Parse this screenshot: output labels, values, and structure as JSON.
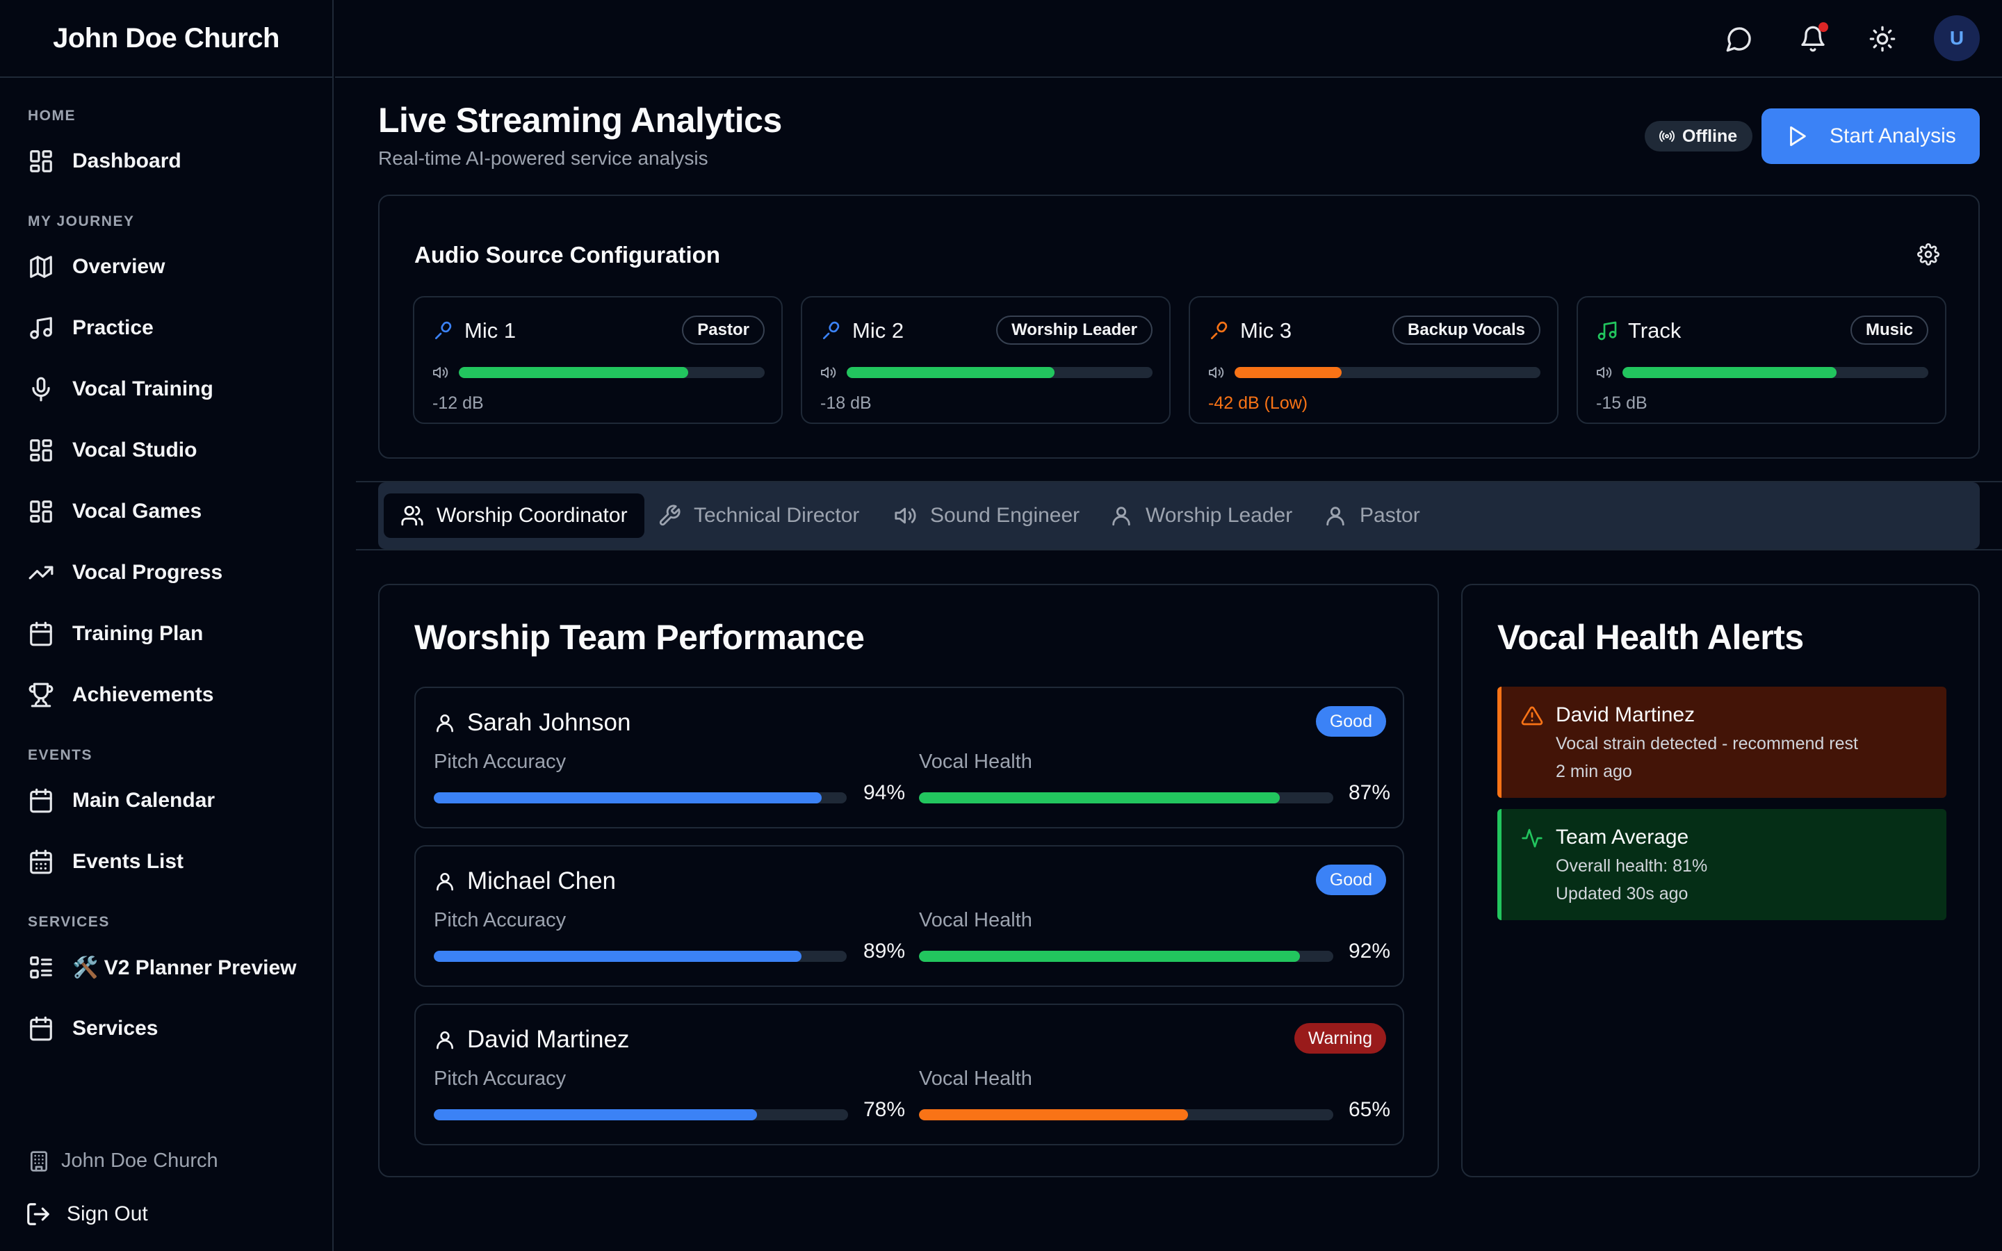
{
  "app": {
    "church_name": "John Doe Church"
  },
  "topbar": {
    "avatar_initial": "U"
  },
  "sidebar": {
    "sections": {
      "home": "HOME",
      "journey": "MY JOURNEY",
      "events": "EVENTS",
      "services": "SERVICES"
    },
    "items": {
      "dashboard": "Dashboard",
      "overview": "Overview",
      "practice": "Practice",
      "vocal_training": "Vocal Training",
      "vocal_studio": "Vocal Studio",
      "vocal_games": "Vocal Games",
      "vocal_progress": "Vocal Progress",
      "training_plan": "Training Plan",
      "achievements": "Achievements",
      "main_calendar": "Main Calendar",
      "events_list": "Events List",
      "v2_planner": "🛠️ V2 Planner Preview",
      "services": "Services"
    },
    "footer_church": "John Doe Church",
    "sign_out": "Sign Out"
  },
  "header": {
    "title": "Live Streaming Analytics",
    "subtitle": "Real-time AI-powered service analysis",
    "status_badge": "Offline",
    "start_button": "Start Analysis"
  },
  "audio": {
    "title": "Audio Source Configuration",
    "sources": [
      {
        "name": "Mic 1",
        "role": "Pastor",
        "level": "-12 dB",
        "meter_pct": 75,
        "color": "#22c55e",
        "icon": "mic-icon",
        "icon_color": "#3b82f6"
      },
      {
        "name": "Mic 2",
        "role": "Worship Leader",
        "level": "-18 dB",
        "meter_pct": 68,
        "color": "#22c55e",
        "icon": "mic-icon",
        "icon_color": "#3b82f6"
      },
      {
        "name": "Mic 3",
        "role": "Backup Vocals",
        "level": "-42 dB (Low)",
        "meter_pct": 35,
        "color": "#f97316",
        "icon": "mic-icon",
        "icon_color": "#f97316"
      },
      {
        "name": "Track",
        "role": "Music",
        "level": "-15 dB",
        "meter_pct": 70,
        "color": "#22c55e",
        "icon": "music-icon",
        "icon_color": "#22c55e"
      }
    ]
  },
  "tabs": [
    {
      "label": "Worship Coordinator",
      "active": true,
      "icon": "users-icon"
    },
    {
      "label": "Technical Director",
      "active": false,
      "icon": "wrench-icon"
    },
    {
      "label": "Sound Engineer",
      "active": false,
      "icon": "speaker-icon"
    },
    {
      "label": "Worship Leader",
      "active": false,
      "icon": "user-icon"
    },
    {
      "label": "Pastor",
      "active": false,
      "icon": "user-icon"
    }
  ],
  "performance": {
    "title": "Worship Team Performance",
    "pitch_label": "Pitch Accuracy",
    "health_label": "Vocal Health",
    "members": [
      {
        "name": "Sarah Johnson",
        "status": "Good",
        "status_color": "#3b82f6",
        "pitch": "94%",
        "pitch_pct": 94,
        "health": "87%",
        "health_pct": 87,
        "health_color": "#22c55e"
      },
      {
        "name": "Michael Chen",
        "status": "Good",
        "status_color": "#3b82f6",
        "pitch": "89%",
        "pitch_pct": 89,
        "health": "92%",
        "health_pct": 92,
        "health_color": "#22c55e"
      },
      {
        "name": "David Martinez",
        "status": "Warning",
        "status_color": "#991b1b",
        "pitch": "78%",
        "pitch_pct": 78,
        "health": "65%",
        "health_pct": 65,
        "health_color": "#f97316"
      }
    ]
  },
  "alerts": {
    "title": "Vocal Health Alerts",
    "items": [
      {
        "title": "David Martinez",
        "message": "Vocal strain detected - recommend rest",
        "time": "2 min ago",
        "bg": "#431407",
        "border": "#f97316",
        "icon": "warning-icon"
      },
      {
        "title": "Team Average",
        "message": "Overall health: 81%",
        "time": "Updated 30s ago",
        "bg": "#052e16",
        "border": "#22c55e",
        "icon": "activity-icon"
      }
    ]
  }
}
